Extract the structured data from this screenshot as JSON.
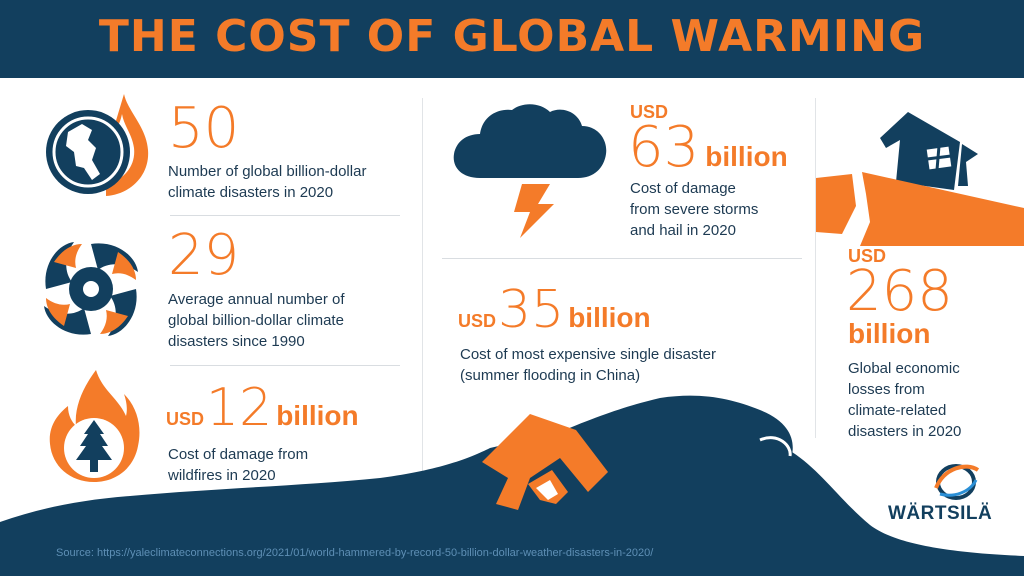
{
  "title": "THE COST OF GLOBAL WARMING",
  "stats": {
    "disasters_2020": {
      "value": "50",
      "description_lines": [
        "Number of global billion-dollar",
        "climate disasters in 2020"
      ]
    },
    "annual_average": {
      "value": "29",
      "description_lines": [
        "Average annual number of",
        "global billion-dollar climate",
        "disasters since 1990"
      ]
    },
    "wildfires": {
      "currency": "USD",
      "value": "12",
      "unit": "billion",
      "description_lines": [
        "Cost of damage from",
        "wildfires in 2020"
      ]
    },
    "storms": {
      "currency": "USD",
      "value": "63",
      "unit": "billion",
      "description_lines": [
        "Cost of damage",
        "from severe storms",
        "and hail in 2020"
      ]
    },
    "flooding": {
      "currency": "USD",
      "value": "35",
      "unit": "billion",
      "description_lines": [
        "Cost of most expensive single disaster",
        "(summer flooding in China)"
      ]
    },
    "global_losses": {
      "currency": "USD",
      "value": "268",
      "unit": "billion",
      "description_lines": [
        "Global economic",
        "losses from",
        "climate-related",
        "disasters in 2020"
      ]
    }
  },
  "icons": [
    "globe-fire-icon",
    "hurricane-icon",
    "wildfire-tree-icon",
    "storm-cloud-icon",
    "earthquake-house-icon",
    "flood-house-icon"
  ],
  "source": "Source: https://yaleclimateconnections.org/2021/01/world-hammered-by-record-50-billion-dollar-weather-disasters-in-2020/",
  "logo": "WÄRTSILÄ",
  "colors": {
    "navy": "#123f5e",
    "orange": "#f47b29",
    "text": "#1d3a52",
    "source": "#5e8fb5"
  }
}
